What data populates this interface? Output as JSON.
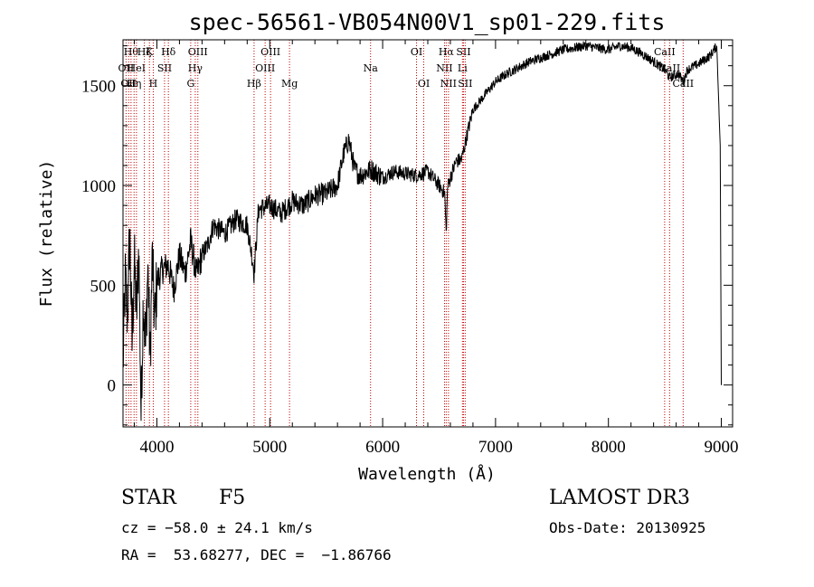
{
  "chart_data": {
    "type": "line",
    "title": "spec-56561-VB054N00V1_sp01-229.fits",
    "xlabel": "Wavelength (Å)",
    "ylabel": "Flux (relative)",
    "xlim": [
      3700,
      9100
    ],
    "ylim": [
      -210,
      1730
    ],
    "xticks": [
      4000,
      5000,
      6000,
      7000,
      8000,
      9000
    ],
    "yticks": [
      0,
      500,
      1000,
      1500
    ],
    "series": [
      {
        "name": "spectrum",
        "x": [
          3700,
          3720,
          3740,
          3760,
          3780,
          3800,
          3820,
          3840,
          3860,
          3880,
          3900,
          3920,
          3940,
          3960,
          3980,
          4000,
          4050,
          4100,
          4150,
          4200,
          4250,
          4300,
          4350,
          4400,
          4450,
          4500,
          4600,
          4700,
          4800,
          4850,
          4861,
          4900,
          5000,
          5100,
          5200,
          5300,
          5400,
          5500,
          5600,
          5650,
          5700,
          5750,
          5800,
          5900,
          6000,
          6100,
          6200,
          6300,
          6400,
          6500,
          6550,
          6563,
          6575,
          6600,
          6650,
          6700,
          6750,
          6800,
          6900,
          7000,
          7100,
          7200,
          7300,
          7400,
          7500,
          7600,
          7700,
          7800,
          7900,
          8000,
          8100,
          8200,
          8300,
          8400,
          8500,
          8540,
          8580,
          8620,
          8662,
          8700,
          8800,
          8900,
          8960,
          8990,
          9000
        ],
        "values": [
          100,
          520,
          350,
          780,
          200,
          620,
          350,
          700,
          -150,
          450,
          180,
          600,
          120,
          650,
          300,
          520,
          580,
          600,
          480,
          650,
          560,
          720,
          550,
          650,
          700,
          800,
          760,
          830,
          800,
          620,
          560,
          880,
          900,
          860,
          920,
          900,
          950,
          960,
          1000,
          1150,
          1230,
          1080,
          1050,
          1080,
          1040,
          1070,
          1060,
          1050,
          1070,
          1000,
          960,
          760,
          990,
          1040,
          1120,
          1130,
          1260,
          1380,
          1450,
          1520,
          1560,
          1590,
          1620,
          1640,
          1660,
          1680,
          1690,
          1700,
          1690,
          1680,
          1700,
          1690,
          1660,
          1620,
          1580,
          1540,
          1550,
          1560,
          1520,
          1580,
          1610,
          1650,
          1700,
          1200,
          0
        ]
      }
    ],
    "lines": [
      {
        "wl": 3727,
        "label": "OII",
        "row": 2
      },
      {
        "wl": 3750,
        "label": "OII",
        "row": 3
      },
      {
        "wl": 3771,
        "label": "Hθ",
        "row": 1
      },
      {
        "wl": 3798,
        "label": "Hη",
        "row": 3
      },
      {
        "wl": 3819,
        "label": "HeI",
        "row": 2
      },
      {
        "wl": 3889,
        "label": "Hζ",
        "row": 1
      },
      {
        "wl": 3934,
        "label": "K",
        "row": 1
      },
      {
        "wl": 3968,
        "label": "H",
        "row": 3
      },
      {
        "wl": 4068,
        "label": "SII",
        "row": 2
      },
      {
        "wl": 4102,
        "label": "Hδ",
        "row": 1
      },
      {
        "wl": 4300,
        "label": "G",
        "row": 3
      },
      {
        "wl": 4340,
        "label": "Hγ",
        "row": 2
      },
      {
        "wl": 4363,
        "label": "OIII",
        "row": 1
      },
      {
        "wl": 4861,
        "label": "Hβ",
        "row": 3
      },
      {
        "wl": 4959,
        "label": "OIII",
        "row": 2
      },
      {
        "wl": 5007,
        "label": "OIII",
        "row": 1
      },
      {
        "wl": 5175,
        "label": "Mg",
        "row": 3
      },
      {
        "wl": 5893,
        "label": "Na",
        "row": 2
      },
      {
        "wl": 6300,
        "label": "OI",
        "row": 1
      },
      {
        "wl": 6364,
        "label": "OI",
        "row": 3
      },
      {
        "wl": 6548,
        "label": "NII",
        "row": 2
      },
      {
        "wl": 6563,
        "label": "Hα",
        "row": 1
      },
      {
        "wl": 6583,
        "label": "NII",
        "row": 3
      },
      {
        "wl": 6707,
        "label": "Li",
        "row": 2
      },
      {
        "wl": 6716,
        "label": "SII",
        "row": 1
      },
      {
        "wl": 6731,
        "label": "SII",
        "row": 3
      },
      {
        "wl": 8498,
        "label": "CaII",
        "row": 1
      },
      {
        "wl": 8542,
        "label": "CaII",
        "row": 2
      },
      {
        "wl": 8662,
        "label": "CaII",
        "row": 3
      }
    ]
  },
  "info": {
    "object_class": "STAR",
    "subclass": "F5",
    "survey": "LAMOST DR3",
    "cz": "cz = −58.0 ± 24.1 km/s",
    "obs_date": "Obs-Date: 20130925",
    "coords": "RA =  53.68277, DEC =  −1.86766"
  }
}
